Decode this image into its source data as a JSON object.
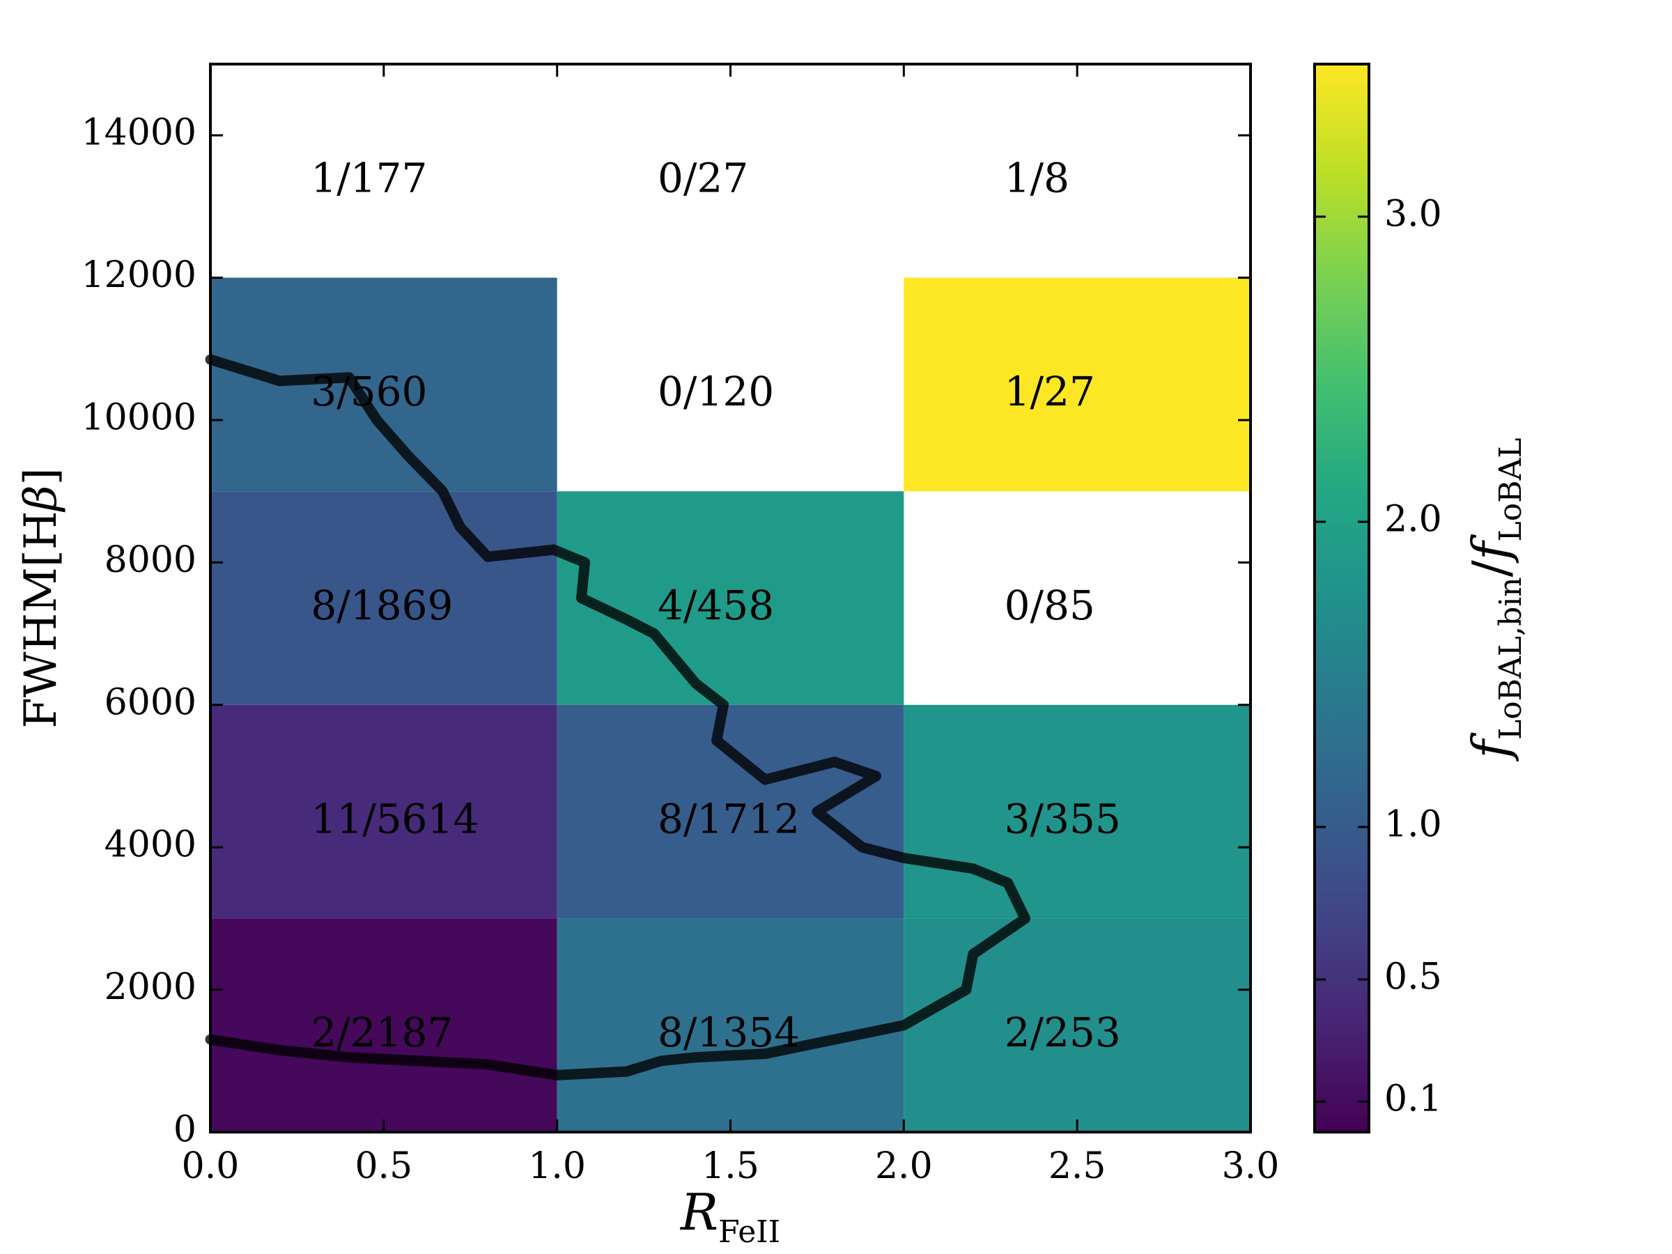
{
  "chart_data": {
    "type": "heatmap",
    "xlabel": "R_FeII",
    "ylabel": "FWHM[Hβ]",
    "colorbar_label": "f_LoBAL,bin / f_LoBAL",
    "xlim": [
      0.0,
      3.0
    ],
    "ylim": [
      0,
      15000
    ],
    "x_ticks": [
      "0.0",
      "0.5",
      "1.0",
      "1.5",
      "2.0",
      "2.5",
      "3.0"
    ],
    "y_ticks": [
      "0",
      "2000",
      "4000",
      "6000",
      "8000",
      "10000",
      "12000",
      "14000"
    ],
    "colorbar_ticks": [
      "0.1",
      "0.5",
      "1.0",
      "2.0",
      "3.0"
    ],
    "colorbar_range": [
      0.0,
      3.5
    ],
    "colormap": "viridis",
    "cells": [
      {
        "x0": 0.0,
        "x1": 1.0,
        "y0": 0,
        "y1": 3000,
        "label": "2/2187",
        "ratio": 0.07
      },
      {
        "x0": 1.0,
        "x1": 2.0,
        "y0": 0,
        "y1": 3000,
        "label": "8/1354",
        "ratio": 1.3
      },
      {
        "x0": 2.0,
        "x1": 3.0,
        "y0": 0,
        "y1": 3000,
        "label": "2/253",
        "ratio": 1.72
      },
      {
        "x0": 0.0,
        "x1": 1.0,
        "y0": 3000,
        "y1": 6000,
        "label": "11/5614",
        "ratio": 0.42
      },
      {
        "x0": 1.0,
        "x1": 2.0,
        "y0": 3000,
        "y1": 6000,
        "label": "8/1712",
        "ratio": 1.02
      },
      {
        "x0": 2.0,
        "x1": 3.0,
        "y0": 3000,
        "y1": 6000,
        "label": "3/355",
        "ratio": 1.8
      },
      {
        "x0": 0.0,
        "x1": 1.0,
        "y0": 6000,
        "y1": 9000,
        "label": "8/1869",
        "ratio": 0.93
      },
      {
        "x0": 1.0,
        "x1": 2.0,
        "y0": 6000,
        "y1": 9000,
        "label": "4/458",
        "ratio": 1.9
      },
      {
        "x0": 2.0,
        "x1": 3.0,
        "y0": 6000,
        "y1": 9000,
        "label": "0/85",
        "ratio": null
      },
      {
        "x0": 0.0,
        "x1": 1.0,
        "y0": 9000,
        "y1": 12000,
        "label": "3/560",
        "ratio": 1.15
      },
      {
        "x0": 1.0,
        "x1": 2.0,
        "y0": 9000,
        "y1": 12000,
        "label": "0/120",
        "ratio": null
      },
      {
        "x0": 2.0,
        "x1": 3.0,
        "y0": 9000,
        "y1": 12000,
        "label": "1/27",
        "ratio": 3.5
      },
      {
        "x0": 0.0,
        "x1": 1.0,
        "y0": 12000,
        "y1": 15000,
        "label": "1/177",
        "ratio": null
      },
      {
        "x0": 1.0,
        "x1": 2.0,
        "y0": 12000,
        "y1": 15000,
        "label": "0/27",
        "ratio": null
      },
      {
        "x0": 2.0,
        "x1": 3.0,
        "y0": 12000,
        "y1": 15000,
        "label": "1/8",
        "ratio": null
      }
    ],
    "contour": [
      [
        0.0,
        10850
      ],
      [
        0.2,
        10550
      ],
      [
        0.4,
        10600
      ],
      [
        0.48,
        10000
      ],
      [
        0.57,
        9500
      ],
      [
        0.67,
        9000
      ],
      [
        0.72,
        8500
      ],
      [
        0.8,
        8080
      ],
      [
        0.99,
        8180
      ],
      [
        1.08,
        8000
      ],
      [
        1.07,
        7500
      ],
      [
        1.2,
        7200
      ],
      [
        1.28,
        7000
      ],
      [
        1.4,
        6300
      ],
      [
        1.48,
        6000
      ],
      [
        1.46,
        5500
      ],
      [
        1.6,
        4950
      ],
      [
        1.8,
        5200
      ],
      [
        1.92,
        5000
      ],
      [
        1.75,
        4500
      ],
      [
        1.88,
        4000
      ],
      [
        2.0,
        3850
      ],
      [
        2.2,
        3700
      ],
      [
        2.3,
        3500
      ],
      [
        2.35,
        3000
      ],
      [
        2.2,
        2500
      ],
      [
        2.18,
        2000
      ],
      [
        2.0,
        1500
      ],
      [
        1.8,
        1300
      ],
      [
        1.6,
        1100
      ],
      [
        1.4,
        1050
      ],
      [
        1.3,
        1000
      ],
      [
        1.2,
        850
      ],
      [
        1.0,
        800
      ],
      [
        0.8,
        950
      ],
      [
        0.6,
        1000
      ],
      [
        0.4,
        1050
      ],
      [
        0.2,
        1150
      ],
      [
        0.0,
        1300
      ]
    ]
  }
}
